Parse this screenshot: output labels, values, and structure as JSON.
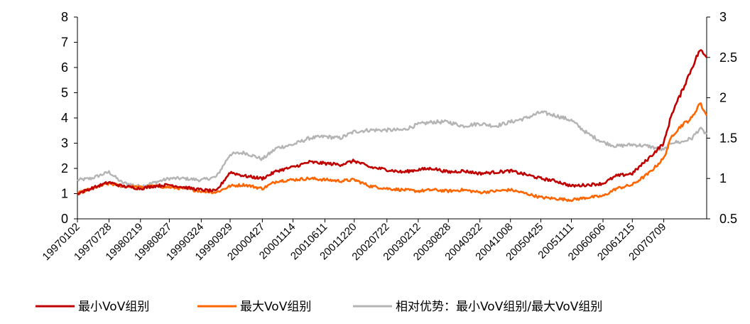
{
  "chart_data": {
    "type": "line",
    "title": "",
    "x_ticks": [
      "19970102",
      "19970728",
      "19980219",
      "19980827",
      "19990324",
      "19990929",
      "20000427",
      "20001114",
      "20010611",
      "20011220",
      "20020722",
      "20030212",
      "20030828",
      "20040322",
      "20041008",
      "20050425",
      "20051111",
      "20060606",
      "20061215",
      "20070709"
    ],
    "y_left": {
      "ticks": [
        "0",
        "1",
        "2",
        "3",
        "4",
        "5",
        "6",
        "7",
        "8"
      ],
      "ylim": [
        0,
        8
      ]
    },
    "y_right": {
      "ticks": [
        "0.5",
        "1",
        "1.5",
        "2",
        "2.5",
        "3"
      ],
      "ylim": [
        0.5,
        3
      ]
    },
    "grid": false,
    "legend_position": "bottom",
    "x": [
      "19970102",
      "19970401",
      "19970728",
      "19971020",
      "19980219",
      "19980520",
      "19980827",
      "19981201",
      "19990324",
      "19990701",
      "19990929",
      "20000101",
      "20000427",
      "20000801",
      "20001114",
      "20010301",
      "20010611",
      "20010920",
      "20011220",
      "20020401",
      "20020722",
      "20021101",
      "20030212",
      "20030520",
      "20030828",
      "20031201",
      "20040322",
      "20040701",
      "20041008",
      "20050120",
      "20050425",
      "20050801",
      "20051111",
      "20060301",
      "20060606",
      "20060901",
      "20061215",
      "20070401",
      "20070709",
      "20070901",
      "20071101",
      "20080110",
      "20080301",
      "20080415"
    ],
    "series": [
      {
        "name": "最小VoV组别",
        "axis": "left",
        "color": "#c00000",
        "values": [
          1.0,
          1.2,
          1.45,
          1.3,
          1.2,
          1.3,
          1.35,
          1.25,
          1.15,
          1.1,
          1.85,
          1.7,
          1.6,
          1.9,
          2.05,
          2.25,
          2.2,
          2.15,
          2.3,
          2.05,
          1.95,
          1.85,
          1.95,
          2.0,
          1.85,
          1.9,
          1.8,
          1.85,
          1.9,
          1.75,
          1.6,
          1.5,
          1.3,
          1.35,
          1.4,
          1.7,
          1.8,
          2.4,
          3.0,
          4.2,
          5.0,
          6.0,
          6.7,
          6.4
        ]
      },
      {
        "name": "最大VoV组别",
        "axis": "left",
        "color": "#ff6600",
        "values": [
          1.0,
          1.2,
          1.4,
          1.3,
          1.25,
          1.3,
          1.25,
          1.2,
          1.1,
          1.05,
          1.3,
          1.35,
          1.2,
          1.5,
          1.55,
          1.6,
          1.55,
          1.5,
          1.55,
          1.3,
          1.2,
          1.15,
          1.1,
          1.15,
          1.1,
          1.15,
          1.05,
          1.1,
          1.15,
          1.0,
          0.85,
          0.8,
          0.75,
          0.85,
          0.9,
          1.2,
          1.35,
          1.8,
          2.4,
          3.3,
          3.7,
          4.0,
          4.6,
          4.1
        ]
      },
      {
        "name": "相对优势：最小VoV组别/最大VoV组别",
        "axis": "right",
        "color": "#b4b4b4",
        "values": [
          0.98,
          1.0,
          1.08,
          0.95,
          0.9,
          0.95,
          1.0,
          1.0,
          0.98,
          1.02,
          1.3,
          1.32,
          1.24,
          1.38,
          1.42,
          1.5,
          1.52,
          1.5,
          1.58,
          1.6,
          1.6,
          1.6,
          1.67,
          1.7,
          1.7,
          1.65,
          1.68,
          1.65,
          1.7,
          1.75,
          1.82,
          1.78,
          1.72,
          1.55,
          1.45,
          1.4,
          1.42,
          1.4,
          1.35,
          1.45,
          1.45,
          1.5,
          1.62,
          1.55
        ]
      }
    ]
  }
}
